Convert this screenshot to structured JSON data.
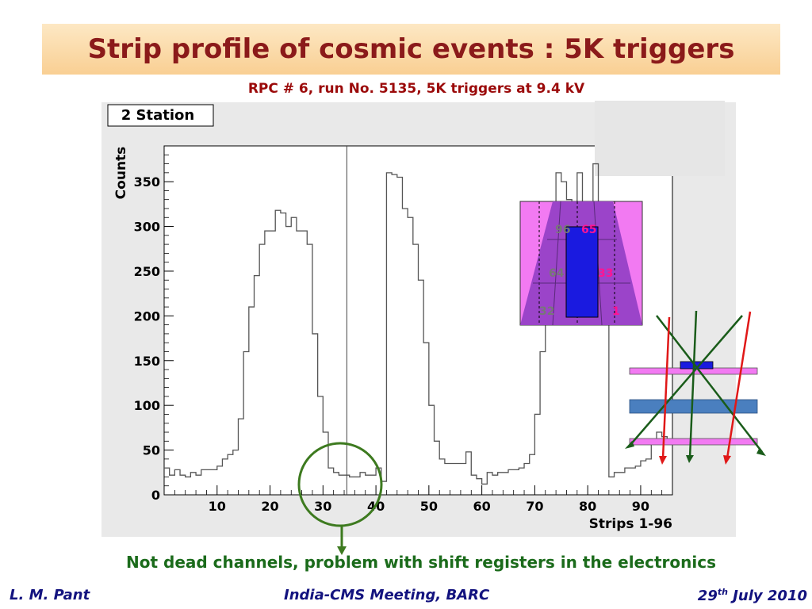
{
  "slide": {
    "title": "Strip profile of cosmic events : 5K triggers",
    "subtitle": "RPC # 6, run No. 5135, 5K triggers at 9.4 kV",
    "note": "Not dead channels, problem with shift registers in the electronics",
    "footer_left": "L. M. Pant",
    "footer_center": "India-CMS Meeting, BARC",
    "footer_right_day": "29",
    "footer_right_sup": "th",
    "footer_right_rest": " July 2010"
  },
  "chart_data": {
    "type": "histogram",
    "title": "2 Station",
    "xlabel": "Strips 1-96",
    "ylabel": "Counts",
    "xlim": [
      0,
      96
    ],
    "ylim": [
      0,
      390
    ],
    "xticks": [
      10,
      20,
      30,
      40,
      50,
      60,
      70,
      80,
      90
    ],
    "yticks": [
      0,
      50,
      100,
      150,
      200,
      250,
      300,
      350
    ],
    "bins_start": 0,
    "bin_width": 1,
    "values": [
      30,
      22,
      28,
      22,
      20,
      25,
      22,
      28,
      28,
      28,
      32,
      40,
      45,
      50,
      85,
      160,
      210,
      245,
      280,
      295,
      295,
      318,
      315,
      300,
      310,
      295,
      295,
      280,
      180,
      110,
      70,
      30,
      25,
      22,
      22,
      20,
      20,
      25,
      22,
      22,
      30,
      15,
      360,
      358,
      355,
      320,
      310,
      280,
      240,
      170,
      100,
      60,
      40,
      35,
      35,
      35,
      35,
      48,
      22,
      18,
      12,
      25,
      22,
      25,
      25,
      28,
      28,
      30,
      35,
      45,
      90,
      160,
      240,
      320,
      360,
      350,
      330,
      300,
      360,
      300,
      320,
      370,
      300,
      320,
      20,
      25,
      25,
      30,
      30,
      32,
      38,
      40,
      60,
      70,
      65,
      60
    ],
    "annotation_marker_strip": 34.5,
    "strip_labels": [
      "96",
      "65",
      "64",
      "33",
      "32",
      "1"
    ]
  }
}
